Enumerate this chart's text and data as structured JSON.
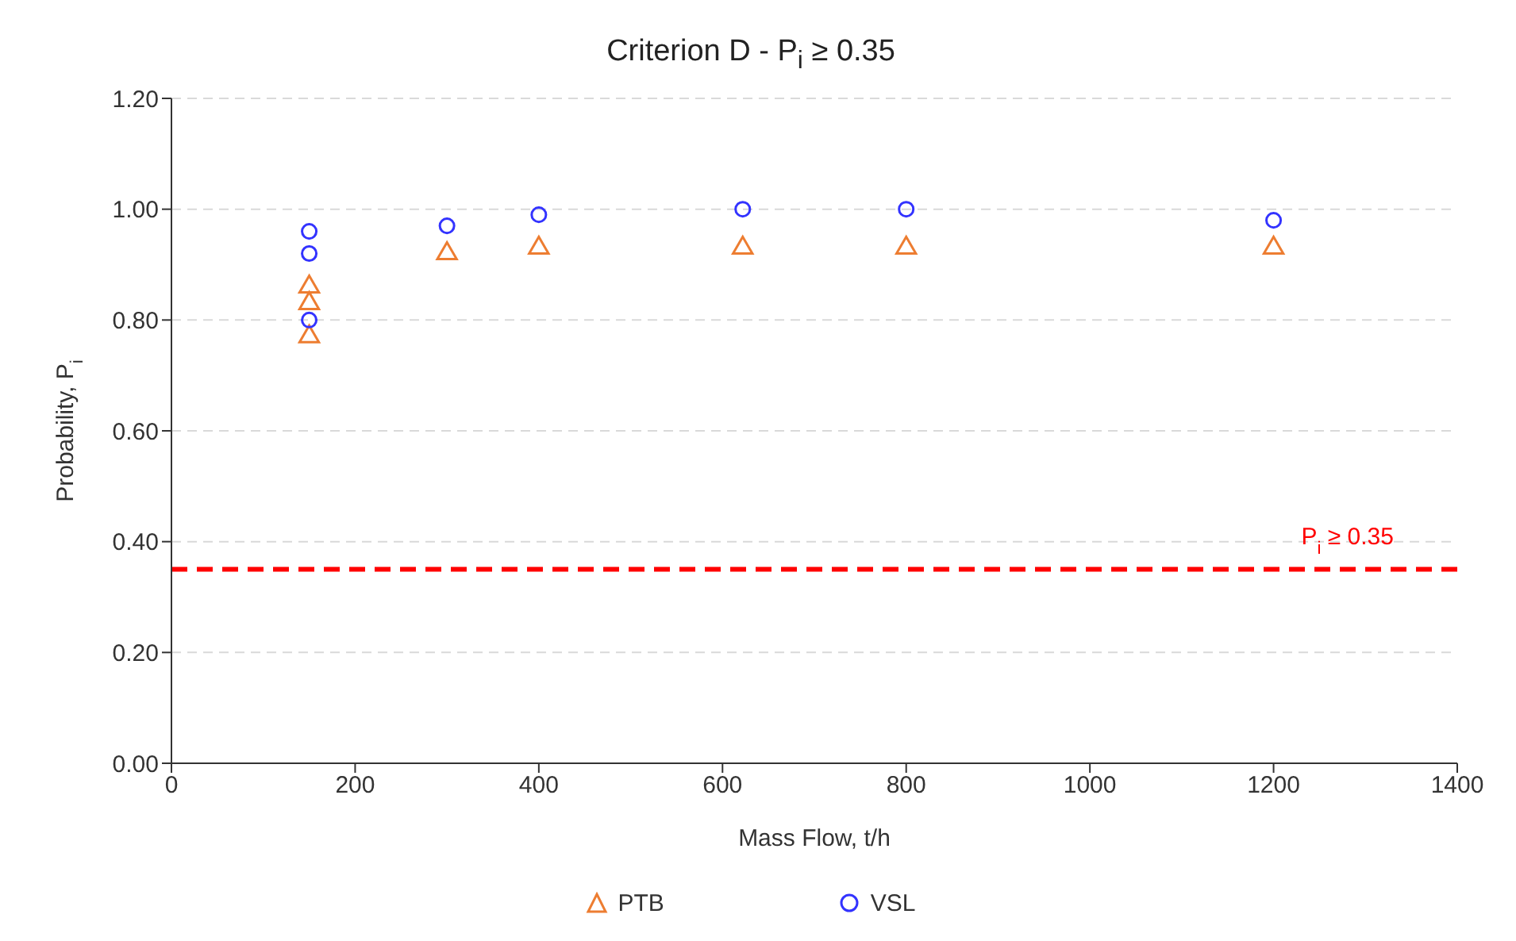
{
  "chart_data": {
    "type": "scatter",
    "title": "Criterion D - P$_{i}$ ≥ 0.35",
    "xlabel": "Mass Flow, t/h",
    "ylabel": "Probability, P$_{i}$",
    "series": [
      {
        "name": "PTB",
        "color": "#ed7d31",
        "marker": "triangle",
        "x": [
          150,
          150,
          150,
          300,
          400,
          622,
          800,
          1200
        ],
        "values": [
          0.86,
          0.83,
          0.77,
          0.92,
          0.93,
          0.93,
          0.93,
          0.93
        ]
      },
      {
        "name": "VSL",
        "color": "#3333ff",
        "marker": "circle",
        "x": [
          150,
          150,
          150,
          300,
          400,
          622,
          800,
          1200
        ],
        "values": [
          0.96,
          0.92,
          0.8,
          0.97,
          0.99,
          1.0,
          1.0,
          0.98
        ]
      }
    ],
    "xlim": [
      0,
      1400
    ],
    "xticks": [
      0,
      200,
      400,
      600,
      800,
      1000,
      1200,
      1400
    ],
    "ylim": [
      0,
      1.2
    ],
    "yticks": [
      {
        "value": 0,
        "label": "0.00"
      },
      {
        "value": 0.2,
        "label": "0.20"
      },
      {
        "value": 0.4,
        "label": "0.40"
      },
      {
        "value": 0.6,
        "label": "0.60"
      },
      {
        "value": 0.8,
        "label": "0.80"
      },
      {
        "value": 1,
        "label": "1.00"
      },
      {
        "value": 1.2,
        "label": "1.20"
      }
    ],
    "ref_lines": [
      {
        "axis": "y",
        "value": 0.35,
        "label": "P$_{i}$ ≥ 0.35",
        "color": "#ff0000",
        "line_style": "dashed"
      }
    ],
    "grid": "y",
    "legend": "bottom"
  }
}
